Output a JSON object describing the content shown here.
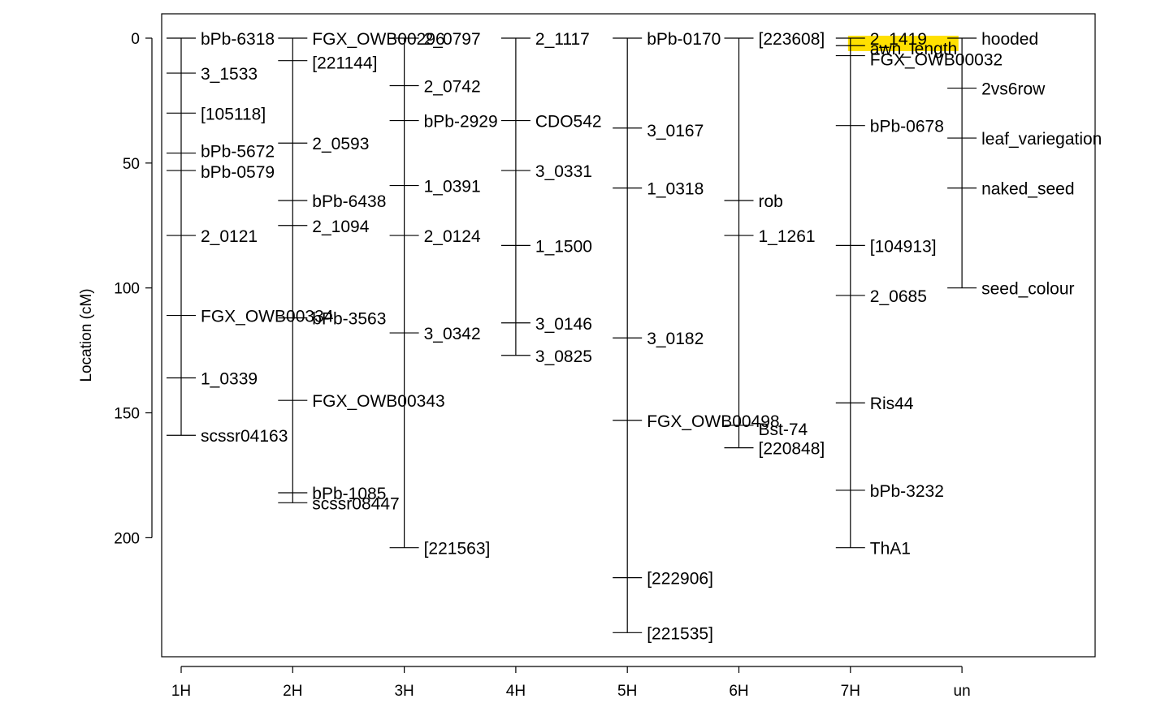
{
  "chart_data": {
    "type": "genetic_map",
    "title": "",
    "xlabel": "",
    "ylabel": "Location (cM)",
    "y_axis_reversed": true,
    "ylim": [
      0,
      240
    ],
    "yticks": [
      0,
      50,
      100,
      150,
      200
    ],
    "grid": false,
    "legend": "none",
    "highlight_color": "#ffe000",
    "chromosomes": [
      {
        "name": "1H",
        "length": 159,
        "markers": [
          {
            "name": "bPb-6318",
            "pos": 0
          },
          {
            "name": "3_1533",
            "pos": 14
          },
          {
            "name": "[105118]",
            "pos": 30
          },
          {
            "name": "bPb-5672",
            "pos": 46
          },
          {
            "name": "bPb-0579",
            "pos": 53
          },
          {
            "name": "2_0121",
            "pos": 79
          },
          {
            "name": "FGX_OWB00334",
            "pos": 111
          },
          {
            "name": "1_0339",
            "pos": 136
          },
          {
            "name": "scssr04163",
            "pos": 159
          }
        ]
      },
      {
        "name": "2H",
        "length": 186,
        "markers": [
          {
            "name": "FGX_OWB00296",
            "pos": 0
          },
          {
            "name": "[221144]",
            "pos": 9
          },
          {
            "name": "2_0593",
            "pos": 42
          },
          {
            "name": "bPb-6438",
            "pos": 65
          },
          {
            "name": "2_1094",
            "pos": 75
          },
          {
            "name": "bPb-3563",
            "pos": 112
          },
          {
            "name": "FGX_OWB00343",
            "pos": 145
          },
          {
            "name": "bPb-1085",
            "pos": 182
          },
          {
            "name": "scssr08447",
            "pos": 186
          }
        ]
      },
      {
        "name": "3H",
        "length": 204,
        "markers": [
          {
            "name": "2_0797",
            "pos": 0
          },
          {
            "name": "2_0742",
            "pos": 19
          },
          {
            "name": "bPb-2929",
            "pos": 33
          },
          {
            "name": "1_0391",
            "pos": 59
          },
          {
            "name": "2_0124",
            "pos": 79
          },
          {
            "name": "3_0342",
            "pos": 118
          },
          {
            "name": "[221563]",
            "pos": 204
          }
        ]
      },
      {
        "name": "4H",
        "length": 127,
        "markers": [
          {
            "name": "2_1117",
            "pos": 0
          },
          {
            "name": "CDO542",
            "pos": 33
          },
          {
            "name": "3_0331",
            "pos": 53
          },
          {
            "name": "1_1500",
            "pos": 83
          },
          {
            "name": "3_0146",
            "pos": 114
          },
          {
            "name": "3_0825",
            "pos": 127
          }
        ]
      },
      {
        "name": "5H",
        "length": 238,
        "markers": [
          {
            "name": "bPb-0170",
            "pos": 0
          },
          {
            "name": "3_0167",
            "pos": 36
          },
          {
            "name": "1_0318",
            "pos": 60
          },
          {
            "name": "3_0182",
            "pos": 120
          },
          {
            "name": "FGX_OWB00498",
            "pos": 153
          },
          {
            "name": "[222906]",
            "pos": 216
          },
          {
            "name": "[221535]",
            "pos": 238
          }
        ]
      },
      {
        "name": "6H",
        "length": 164,
        "markers": [
          {
            "name": "[223608]",
            "pos": 0
          },
          {
            "name": "rob",
            "pos": 65
          },
          {
            "name": "1_1261",
            "pos": 79
          },
          {
            "name": "Bst-74",
            "pos": 155
          },
          {
            "name": "[220848]",
            "pos": 164
          }
        ]
      },
      {
        "name": "7H",
        "length": 204,
        "markers": [
          {
            "name": "2_1419",
            "pos": 0
          },
          {
            "name": "awn_length",
            "pos": 3
          },
          {
            "name": "FGX_OWB00032",
            "pos": 7
          },
          {
            "name": "bPb-0678",
            "pos": 35
          },
          {
            "name": "[104913]",
            "pos": 83
          },
          {
            "name": "2_0685",
            "pos": 103
          },
          {
            "name": "Ris44",
            "pos": 146
          },
          {
            "name": "bPb-3232",
            "pos": 181
          },
          {
            "name": "ThA1",
            "pos": 204
          }
        ]
      },
      {
        "name": "un",
        "length": 100,
        "markers": [
          {
            "name": "hooded",
            "pos": 0
          },
          {
            "name": "2vs6row",
            "pos": 20
          },
          {
            "name": "leaf_variegation",
            "pos": 40
          },
          {
            "name": "naked_seed",
            "pos": 60
          },
          {
            "name": "seed_colour",
            "pos": 100
          }
        ]
      }
    ]
  }
}
